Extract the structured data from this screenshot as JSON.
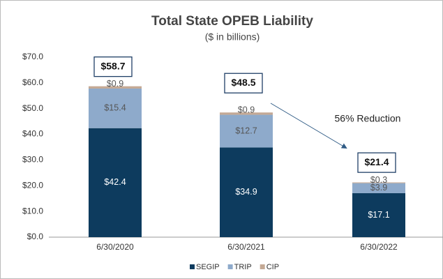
{
  "chart_data": {
    "type": "stacked_bar",
    "title": "Total State OPEB Liability",
    "subtitle": "($ in billions)",
    "categories": [
      "6/30/2020",
      "6/30/2021",
      "6/30/2022"
    ],
    "series": [
      {
        "name": "SEGIP",
        "color": "#0d3b5e",
        "values": [
          42.4,
          34.9,
          17.1
        ],
        "value_labels": [
          "$42.4",
          "$34.9",
          "$17.1"
        ]
      },
      {
        "name": "TRIP",
        "color": "#8eaacb",
        "values": [
          15.4,
          12.7,
          3.9
        ],
        "value_labels": [
          "$15.4",
          "$12.7",
          "$3.9"
        ]
      },
      {
        "name": "CIP",
        "color": "#c4a995",
        "values": [
          0.9,
          0.9,
          0.3
        ],
        "value_labels": [
          "$0.9",
          "$0.9",
          "$0.3"
        ]
      }
    ],
    "totals": [
      58.7,
      48.5,
      21.4
    ],
    "total_labels": [
      "$58.7",
      "$48.5",
      "$21.4"
    ],
    "annotation": "56% Reduction",
    "ylim": [
      0,
      70
    ],
    "yticks": [
      {
        "value": 0,
        "label": "$0.0"
      },
      {
        "value": 10,
        "label": "$10.0"
      },
      {
        "value": 20,
        "label": "$20.0"
      },
      {
        "value": 30,
        "label": "$30.0"
      },
      {
        "value": 40,
        "label": "$40.0"
      },
      {
        "value": 50,
        "label": "$50.0"
      },
      {
        "value": 60,
        "label": "$60.0"
      },
      {
        "value": 70,
        "label": "$70.0"
      }
    ],
    "grid": false,
    "legend": "bottom"
  }
}
